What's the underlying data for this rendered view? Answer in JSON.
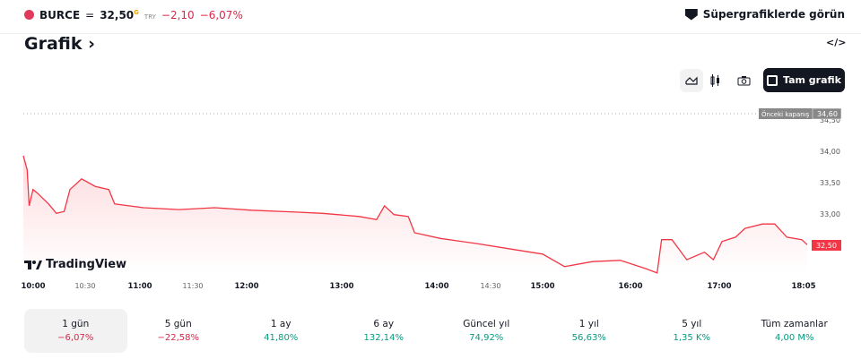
{
  "header": {
    "symbol": "BURCE",
    "price": "32,50",
    "price_flag": "G",
    "currency": "TRY",
    "change": "−2,10",
    "change_pct": "−6,07%",
    "supercharts_label": "Süpergrafiklerde görün"
  },
  "section": {
    "title": "Grafik",
    "chevron": "›",
    "embed_label": "</>"
  },
  "toolbar": {
    "full_chart_label": "Tam grafik",
    "icons": [
      "line-chart-icon",
      "candles-icon",
      "camera-icon",
      "fullscreen-icon"
    ]
  },
  "brand": {
    "label": "TradingView"
  },
  "chart_data": {
    "type": "area",
    "prev_close_label": "Önceki kapanış",
    "prev_close": "34,60",
    "last_price_label": "32,50",
    "y_ticks": [
      "34,50",
      "34,00",
      "33,50",
      "33,00"
    ],
    "x_ticks": [
      "10:00",
      "10:30",
      "11:00",
      "11:30",
      "12:00",
      "13:00",
      "14:00",
      "14:30",
      "15:00",
      "16:00",
      "17:00",
      "18:05"
    ],
    "ylim": [
      31.9,
      34.7
    ],
    "color": "#f23645",
    "points": [
      [
        "10:00",
        33.93
      ],
      [
        "10:02",
        33.7
      ],
      [
        "10:03",
        33.13
      ],
      [
        "10:05",
        33.39
      ],
      [
        "10:07",
        33.34
      ],
      [
        "10:13",
        33.16
      ],
      [
        "10:17",
        33.01
      ],
      [
        "10:21",
        33.04
      ],
      [
        "10:24",
        33.39
      ],
      [
        "10:30",
        33.56
      ],
      [
        "10:37",
        33.44
      ],
      [
        "10:44",
        33.39
      ],
      [
        "10:47",
        33.16
      ],
      [
        "11:02",
        33.1
      ],
      [
        "11:22",
        33.07
      ],
      [
        "11:42",
        33.1
      ],
      [
        "12:03",
        33.06
      ],
      [
        "12:31",
        33.03
      ],
      [
        "12:48",
        33.01
      ],
      [
        "13:11",
        32.96
      ],
      [
        "13:22",
        32.91
      ],
      [
        "13:27",
        33.13
      ],
      [
        "13:33",
        32.99
      ],
      [
        "13:42",
        32.96
      ],
      [
        "13:46",
        32.7
      ],
      [
        "14:02",
        32.61
      ],
      [
        "14:22",
        32.53
      ],
      [
        "14:42",
        32.44
      ],
      [
        "15:00",
        32.36
      ],
      [
        "15:15",
        32.16
      ],
      [
        "15:34",
        32.24
      ],
      [
        "15:53",
        32.26
      ],
      [
        "16:10",
        32.13
      ],
      [
        "16:18",
        32.06
      ],
      [
        "16:21",
        32.59
      ],
      [
        "16:28",
        32.59
      ],
      [
        "16:38",
        32.27
      ],
      [
        "16:50",
        32.39
      ],
      [
        "16:56",
        32.27
      ],
      [
        "17:02",
        32.56
      ],
      [
        "17:12",
        32.63
      ],
      [
        "17:19",
        32.77
      ],
      [
        "17:32",
        32.84
      ],
      [
        "17:41",
        32.84
      ],
      [
        "17:50",
        32.63
      ],
      [
        "18:01",
        32.59
      ],
      [
        "18:05",
        32.51
      ]
    ]
  },
  "periods": [
    {
      "label": "1 gün",
      "value": "−6,07%",
      "dir": "neg"
    },
    {
      "label": "5 gün",
      "value": "−22,58%",
      "dir": "neg"
    },
    {
      "label": "1 ay",
      "value": "41,80%",
      "dir": "pos"
    },
    {
      "label": "6 ay",
      "value": "132,14%",
      "dir": "pos"
    },
    {
      "label": "Güncel yıl",
      "value": "74,92%",
      "dir": "pos"
    },
    {
      "label": "1 yıl",
      "value": "56,63%",
      "dir": "pos"
    },
    {
      "label": "5 yıl",
      "value": "1,35 K%",
      "dir": "pos"
    },
    {
      "label": "Tüm zamanlar",
      "value": "4,00 M%",
      "dir": "pos"
    }
  ]
}
